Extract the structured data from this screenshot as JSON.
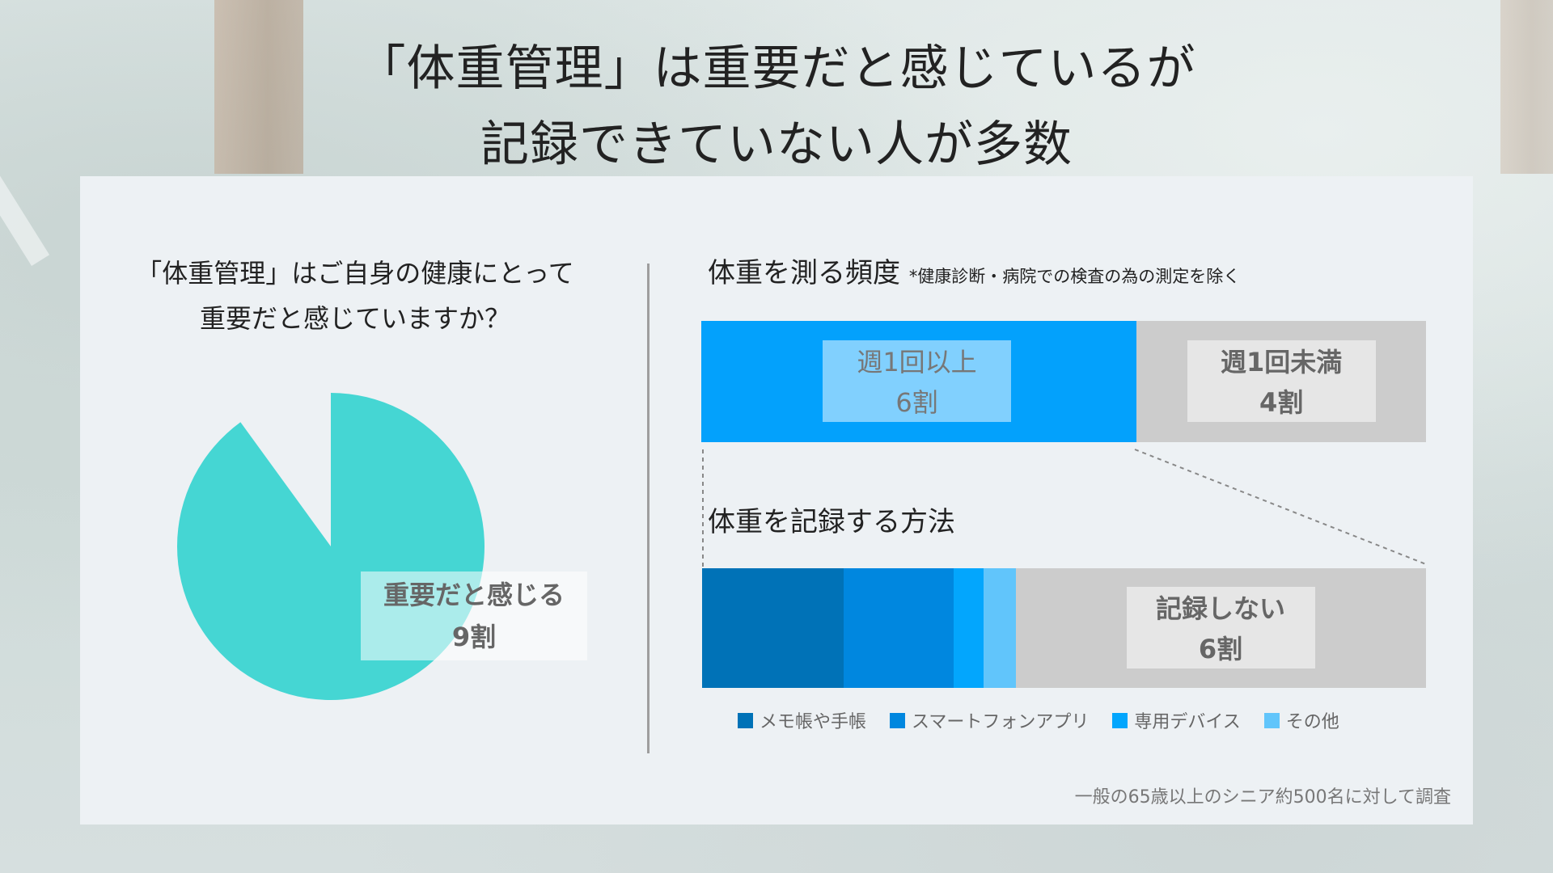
{
  "headline": {
    "line1": "「体重管理」は重要だと感じているが",
    "line2": "記録できていない人が多数"
  },
  "left": {
    "question_line1": "「体重管理」はご自身の健康にとって",
    "question_line2": "重要だと感じていますか？",
    "label_title": "重要だと感じる",
    "label_value": "9割"
  },
  "right": {
    "freq_title": "体重を測る頻度",
    "freq_note": "*健康診断・病院での検査の為の測定を除く",
    "record_title": "体重を記録する方法"
  },
  "source": "一般の65歳以上のシニア約500名に対して調査",
  "colors": {
    "pie": "#45d6d3",
    "weekly": "#03a1fc",
    "gray": "#cccccc",
    "memo": "#0072b7",
    "smartphone": "#0087df",
    "device": "#03a6fd",
    "other": "#61c5fb"
  },
  "chart_data": [
    {
      "type": "pie",
      "title": "「体重管理」はご自身の健康にとって重要だと感じていますか？",
      "slices": [
        {
          "label": "重要だと感じる",
          "value": 0.9,
          "display": "9割",
          "color": "#45d6d3"
        },
        {
          "label": "",
          "value": 0.1,
          "color": "none"
        }
      ]
    },
    {
      "type": "bar",
      "orientation": "horizontal-stacked",
      "title": "体重を測る頻度",
      "note": "*健康診断・病院での検査の為の測定を除く",
      "segments": [
        {
          "label": "週1回以上",
          "value": 0.6,
          "display": "6割",
          "color": "#03a1fc"
        },
        {
          "label": "週1回未満",
          "value": 0.4,
          "display": "4割",
          "color": "#cccccc"
        }
      ]
    },
    {
      "type": "bar",
      "orientation": "horizontal-stacked",
      "title": "体重を記録する方法",
      "segments": [
        {
          "label": "メモ帳や手帳",
          "value": 0.195,
          "color": "#0072b7"
        },
        {
          "label": "スマートフォンアプリ",
          "value": 0.153,
          "color": "#0087df"
        },
        {
          "label": "専用デバイス",
          "value": 0.041,
          "color": "#03a6fd"
        },
        {
          "label": "その他",
          "value": 0.044,
          "color": "#61c5fb"
        },
        {
          "label": "記録しない",
          "value": 0.567,
          "display": "6割",
          "color": "#cccccc"
        }
      ],
      "legend": [
        "メモ帳や手帳",
        "スマートフォンアプリ",
        "専用デバイス",
        "その他"
      ]
    }
  ]
}
